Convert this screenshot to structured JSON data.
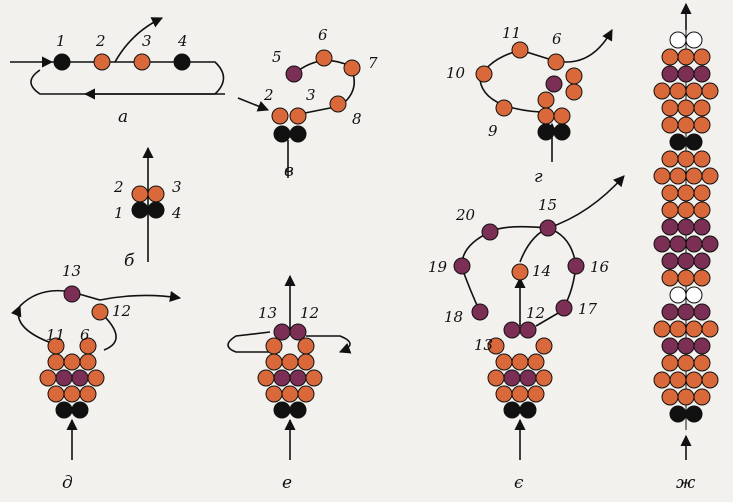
{
  "colors": {
    "background": "#f3f1ee",
    "bead_copper": "#d9693a",
    "bead_plum": "#7b2f55",
    "bead_black": "#111111",
    "bead_white": "#ffffff",
    "thread": "#111111"
  },
  "panels": {
    "a": {
      "caption": "а",
      "labels": [
        "1",
        "2",
        "3",
        "4"
      ]
    },
    "b": {
      "caption": "б",
      "labels": [
        "2",
        "3",
        "1",
        "4"
      ]
    },
    "v": {
      "caption": "в",
      "labels": [
        "5",
        "6",
        "7",
        "2",
        "3",
        "8"
      ]
    },
    "g": {
      "caption": "г",
      "labels": [
        "11",
        "6",
        "10",
        "9"
      ]
    },
    "d": {
      "caption": "д",
      "labels": [
        "13",
        "12",
        "11",
        "6"
      ]
    },
    "e": {
      "caption": "е",
      "labels": [
        "13",
        "12"
      ]
    },
    "ye": {
      "caption": "є",
      "labels": [
        "15",
        "20",
        "19",
        "14",
        "16",
        "18",
        "12",
        "17",
        "13"
      ]
    },
    "zh": {
      "caption": "ж"
    }
  }
}
